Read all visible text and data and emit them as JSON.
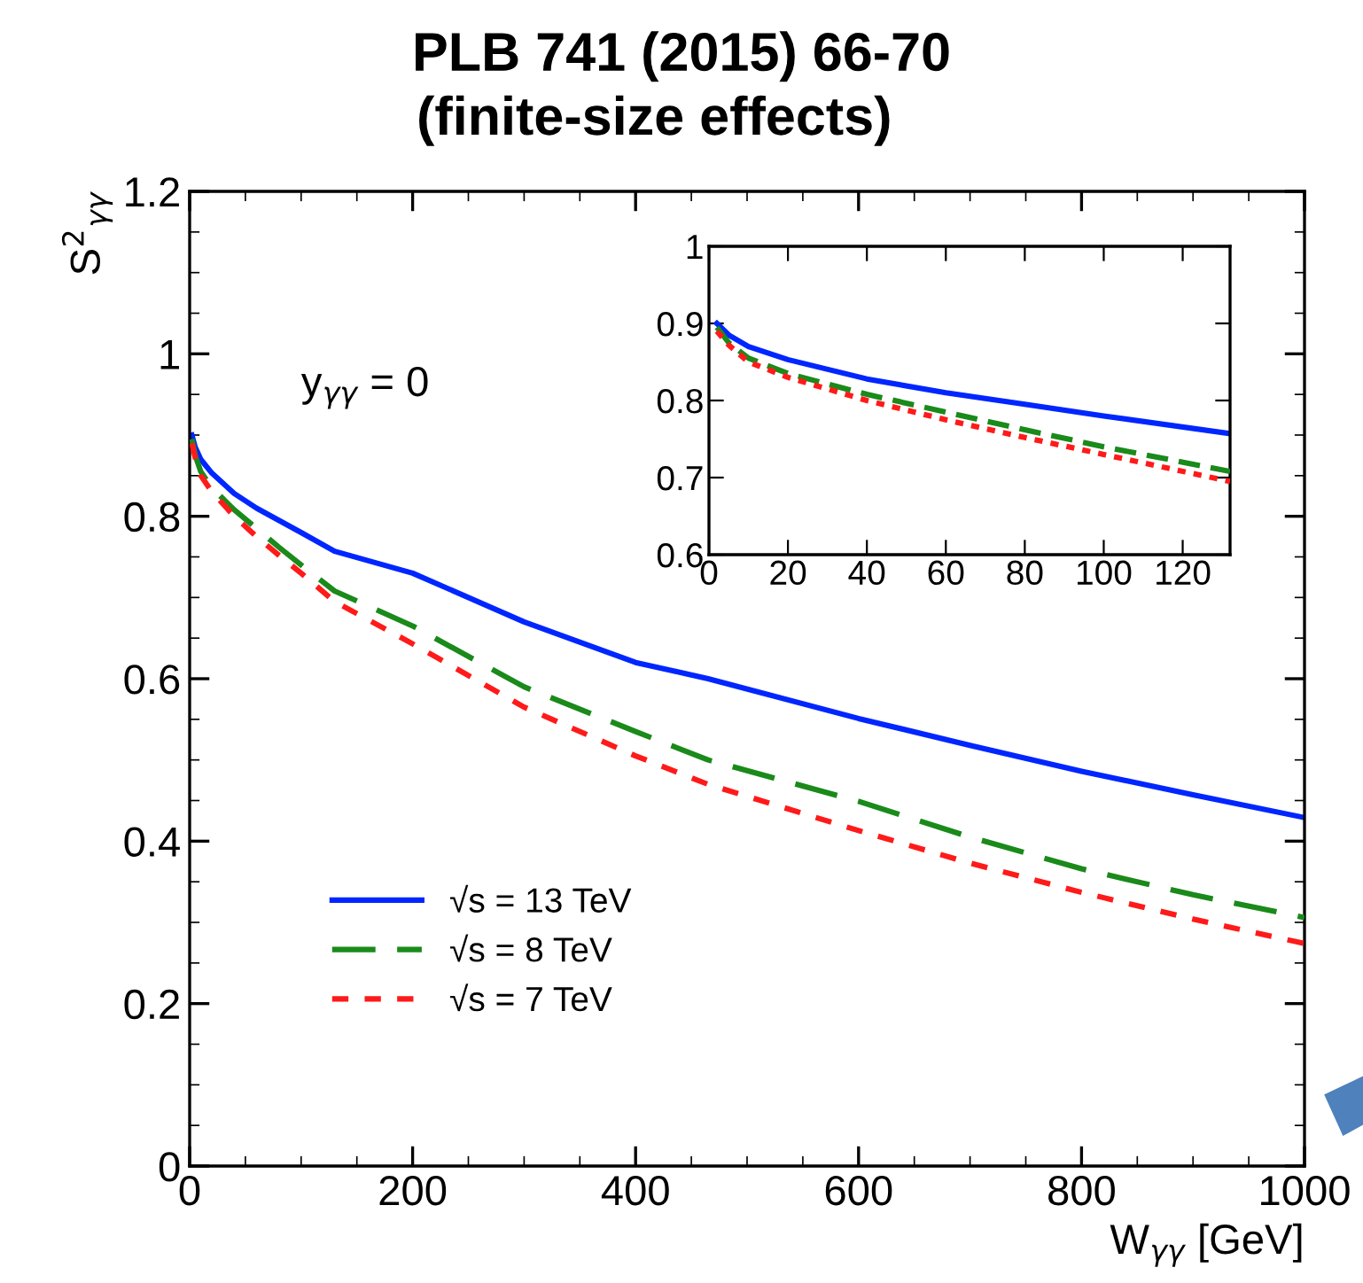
{
  "chart_data": [
    {
      "type": "line",
      "title": "PLB 741 (2015) 66-70",
      "subtitle": "(finite-size effects)",
      "xlabel": "W$_{γγ}$ [GeV]",
      "ylabel": "S$^{2}$$_{γγ}$",
      "annotations": [
        "y$_{γγ}$ = 0"
      ],
      "xlim": [
        0,
        1000
      ],
      "ylim": [
        0,
        1.2
      ],
      "xticks": [
        0,
        200,
        400,
        600,
        800,
        1000
      ],
      "yticks": [
        0,
        0.2,
        0.4,
        0.6,
        0.8,
        1,
        1.2
      ],
      "legend": "bottom left",
      "grid": false,
      "marker": "none",
      "x": [
        2,
        5,
        10,
        20,
        40,
        60,
        80,
        100,
        130,
        200,
        300,
        400,
        465,
        600,
        700,
        800,
        900,
        1000
      ],
      "series": [
        {
          "name": "√s = 13 TeV",
          "color": "#0026ff",
          "line_style": "solid",
          "values": [
            0.9,
            0.885,
            0.87,
            0.853,
            0.828,
            0.81,
            0.795,
            0.78,
            0.757,
            0.73,
            0.67,
            0.62,
            0.6,
            0.551,
            0.518,
            0.486,
            0.457,
            0.429
          ]
        },
        {
          "name": "√s = 8 TeV",
          "color": "#1a8a1a",
          "line_style": "dashed",
          "values": [
            0.895,
            0.875,
            0.855,
            0.835,
            0.808,
            0.785,
            0.762,
            0.74,
            0.708,
            0.665,
            0.59,
            0.535,
            0.5,
            0.449,
            0.405,
            0.366,
            0.334,
            0.306
          ]
        },
        {
          "name": "√s = 7 TeV",
          "color": "#ff1a1a",
          "line_style": "dotted",
          "values": [
            0.89,
            0.872,
            0.85,
            0.83,
            0.8,
            0.775,
            0.752,
            0.73,
            0.695,
            0.643,
            0.565,
            0.505,
            0.47,
            0.413,
            0.373,
            0.337,
            0.304,
            0.274
          ]
        }
      ]
    },
    {
      "type": "line",
      "xlim": [
        0,
        132
      ],
      "ylim": [
        0.6,
        1
      ],
      "xticks": [
        0,
        20,
        40,
        60,
        80,
        100,
        120
      ],
      "yticks": [
        0.6,
        0.7,
        0.8,
        0.9,
        1
      ],
      "grid": false,
      "marker": "none",
      "x": [
        2,
        5,
        10,
        20,
        40,
        60,
        80,
        100,
        132
      ],
      "series": [
        {
          "color": "#0026ff",
          "line_style": "solid",
          "values": [
            0.9,
            0.885,
            0.87,
            0.853,
            0.828,
            0.81,
            0.795,
            0.78,
            0.757
          ]
        },
        {
          "color": "#1a8a1a",
          "line_style": "dashed",
          "values": [
            0.895,
            0.875,
            0.855,
            0.835,
            0.808,
            0.785,
            0.762,
            0.74,
            0.708
          ]
        },
        {
          "color": "#ff1a1a",
          "line_style": "dotted",
          "values": [
            0.89,
            0.872,
            0.85,
            0.83,
            0.8,
            0.775,
            0.752,
            0.73,
            0.695
          ]
        }
      ]
    }
  ]
}
